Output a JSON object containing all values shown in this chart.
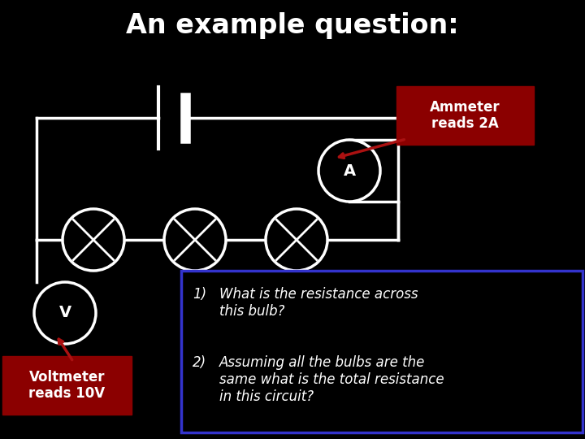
{
  "title": "An example question:",
  "title_color": "#ffffff",
  "title_fontsize": 24,
  "background_color": "#000000",
  "ammeter_label": "A",
  "voltmeter_label": "V",
  "ammeter_reads": "Ammeter\nreads 2A",
  "voltmeter_reads": "Voltmeter\nreads 10V",
  "q1_num": "1)",
  "q1_text": "What is the resistance across\nthis bulb?",
  "q2_num": "2)",
  "q2_text": "Assuming all the bulbs are the\nsame what is the total resistance\nin this circuit?",
  "label_box_color": "#8b0000",
  "question_box_border": "#3333cc",
  "wire_color": "#ffffff",
  "circuit_lw": 2.5,
  "figsize": [
    7.2,
    5.4
  ],
  "dpi": 100,
  "xlim": [
    0,
    7.2
  ],
  "ylim": [
    0,
    5.4
  ]
}
